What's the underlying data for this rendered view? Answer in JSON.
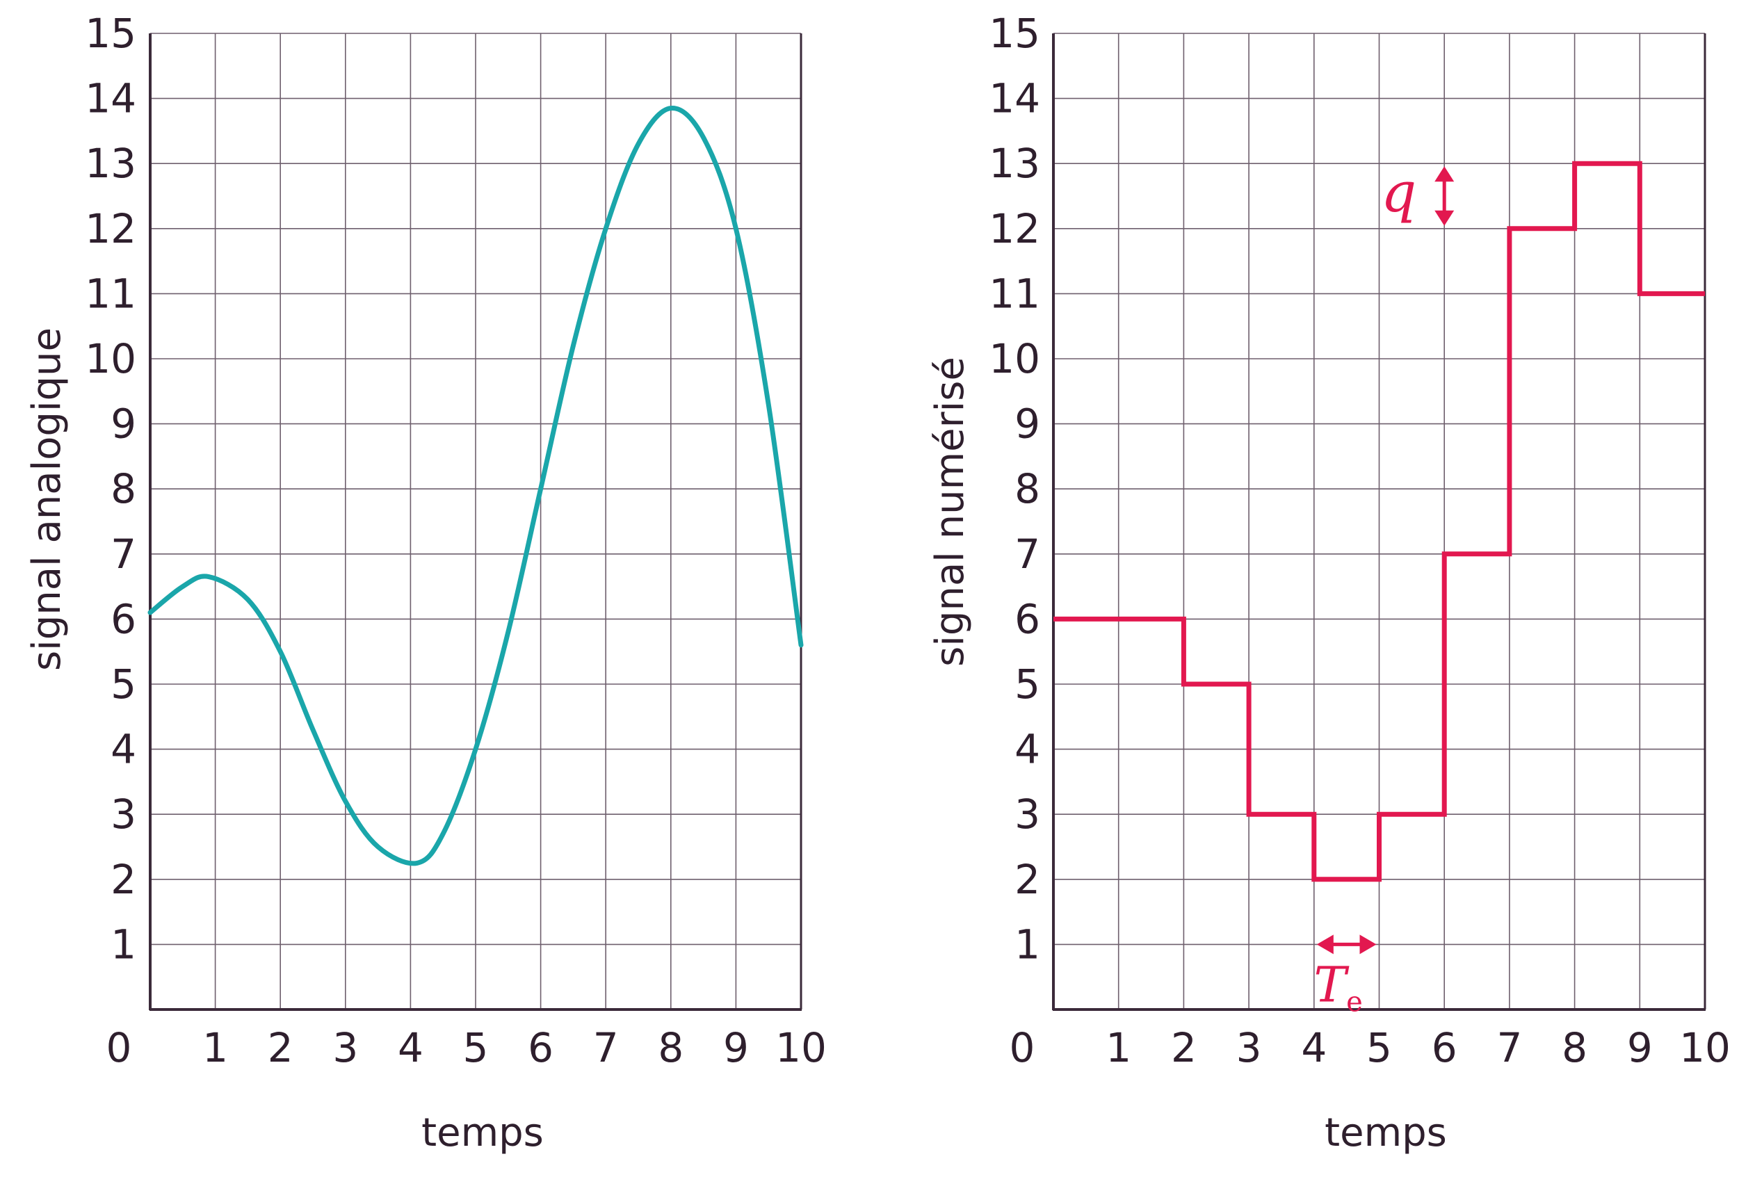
{
  "colors": {
    "axis": "#3b2a3a",
    "grid": "#6e5f6d",
    "text": "#2e1f2d",
    "analog": "#1aa6aa",
    "digital": "#e2184f"
  },
  "chart_data": [
    {
      "type": "line",
      "title": "",
      "xlabel": "temps",
      "ylabel": "signal analogique",
      "xlim": [
        0,
        10
      ],
      "ylim": [
        0,
        15
      ],
      "x_ticks": [
        "0",
        "1",
        "2",
        "3",
        "4",
        "5",
        "6",
        "7",
        "8",
        "9",
        "10"
      ],
      "y_ticks": [
        "1",
        "2",
        "3",
        "4",
        "5",
        "6",
        "7",
        "8",
        "9",
        "10",
        "11",
        "12",
        "13",
        "14",
        "15"
      ],
      "grid": true,
      "series": [
        {
          "color": "#1aa6aa",
          "x": [
            0,
            0.5,
            0.9,
            1.5,
            2,
            2.5,
            3,
            3.5,
            4.1,
            4.5,
            5,
            5.5,
            6,
            6.5,
            7,
            7.5,
            8,
            8.5,
            9,
            9.5,
            10
          ],
          "y": [
            6.1,
            6.5,
            6.65,
            6.3,
            5.5,
            4.3,
            3.2,
            2.5,
            2.25,
            2.7,
            4.0,
            5.8,
            8.0,
            10.2,
            12.0,
            13.3,
            13.85,
            13.4,
            12.0,
            9.3,
            5.6
          ]
        }
      ]
    },
    {
      "type": "line",
      "step": true,
      "title": "",
      "xlabel": "temps",
      "ylabel": "signal numérisé",
      "xlim": [
        0,
        10
      ],
      "ylim": [
        0,
        15
      ],
      "x_ticks": [
        "0",
        "1",
        "2",
        "3",
        "4",
        "5",
        "6",
        "7",
        "8",
        "9",
        "10"
      ],
      "y_ticks": [
        "1",
        "2",
        "3",
        "4",
        "5",
        "6",
        "7",
        "8",
        "9",
        "10",
        "11",
        "12",
        "13",
        "14",
        "15"
      ],
      "grid": true,
      "series": [
        {
          "color": "#e2184f",
          "x": [
            0,
            1,
            2,
            3,
            4,
            5,
            6,
            7,
            8,
            9
          ],
          "y": [
            6,
            6,
            5,
            3,
            2,
            3,
            7,
            12,
            13,
            11
          ]
        }
      ],
      "annotations": [
        {
          "label": "q",
          "kind": "vertical-double-arrow",
          "x": 6,
          "y_from": 12,
          "y_to": 13
        },
        {
          "label": "T",
          "subscript": "e",
          "kind": "horizontal-double-arrow",
          "y": 1,
          "x_from": 4,
          "x_to": 5
        }
      ]
    }
  ]
}
